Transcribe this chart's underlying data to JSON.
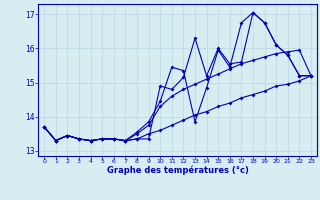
{
  "background_color": "#d6eef2",
  "grid_color": "#b8d8e0",
  "line_color": "#0000bb",
  "xlim": [
    -0.5,
    23.5
  ],
  "ylim": [
    12.85,
    17.3
  ],
  "yticks": [
    13,
    14,
    15,
    16,
    17
  ],
  "xticks": [
    0,
    1,
    2,
    3,
    4,
    5,
    6,
    7,
    8,
    9,
    10,
    11,
    12,
    13,
    14,
    15,
    16,
    17,
    18,
    19,
    20,
    21,
    22,
    23
  ],
  "xlabel": "Graphe des températures (°c)",
  "line1": [
    13.7,
    13.3,
    13.45,
    13.35,
    13.3,
    13.35,
    13.35,
    13.3,
    13.35,
    13.35,
    14.9,
    14.8,
    15.15,
    16.3,
    15.2,
    16.0,
    15.55,
    15.6,
    17.05,
    16.75,
    16.1,
    15.8,
    15.2,
    15.2
  ],
  "line2": [
    13.7,
    13.3,
    13.45,
    13.35,
    13.3,
    13.35,
    13.35,
    13.3,
    13.55,
    13.85,
    14.45,
    15.45,
    15.35,
    13.85,
    14.85,
    15.95,
    15.45,
    16.75,
    17.05,
    16.75,
    16.1,
    15.8,
    15.2,
    15.2
  ],
  "line3": [
    13.7,
    13.3,
    13.45,
    13.35,
    13.3,
    13.35,
    13.35,
    13.3,
    13.5,
    13.75,
    14.3,
    14.6,
    14.8,
    14.95,
    15.1,
    15.25,
    15.4,
    15.55,
    15.65,
    15.75,
    15.85,
    15.9,
    15.95,
    15.2
  ],
  "line4": [
    13.7,
    13.3,
    13.45,
    13.35,
    13.3,
    13.35,
    13.35,
    13.3,
    13.35,
    13.5,
    13.6,
    13.75,
    13.9,
    14.05,
    14.15,
    14.3,
    14.4,
    14.55,
    14.65,
    14.75,
    14.9,
    14.95,
    15.05,
    15.2
  ]
}
